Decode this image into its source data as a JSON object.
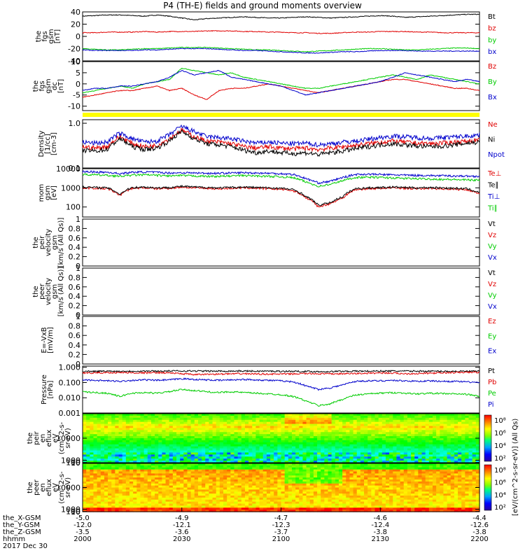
{
  "title": "P4 (TH-E) fields and ground moments overview",
  "date": "2017 Dec 30",
  "colors": {
    "black": "#000000",
    "red": "#e00000",
    "green": "#00cc00",
    "blue": "#0000cc",
    "flag": "#ffff00"
  },
  "chart_data": [
    {
      "id": "fgs_gsm_l2",
      "type": "line",
      "ylabel": [
        "the",
        "fgs",
        "gsm",
        "[nT]"
      ],
      "ylim": [
        -40,
        40
      ],
      "yticks": [
        40,
        20,
        0,
        -20,
        -40
      ],
      "series": [
        {
          "name": "Bt",
          "color": "black",
          "values": [
            33,
            34,
            35,
            35,
            34,
            33,
            35,
            33,
            30,
            27,
            29,
            30,
            31,
            32,
            31,
            30,
            30,
            31,
            32,
            31,
            30,
            31,
            32,
            33,
            34,
            33,
            31,
            32,
            33,
            34,
            35,
            36,
            36
          ]
        },
        {
          "name": "bz",
          "color": "red",
          "values": [
            6,
            6,
            7,
            7,
            7,
            8,
            7,
            8,
            8,
            8,
            9,
            9,
            9,
            8,
            8,
            7,
            7,
            6,
            6,
            5,
            5,
            6,
            7,
            7,
            8,
            8,
            8,
            7,
            7,
            6,
            6,
            6,
            6
          ]
        },
        {
          "name": "by",
          "color": "green",
          "values": [
            -20,
            -21,
            -22,
            -22,
            -21,
            -20,
            -20,
            -19,
            -18,
            -18,
            -18,
            -19,
            -20,
            -21,
            -22,
            -22,
            -23,
            -24,
            -25,
            -24,
            -23,
            -22,
            -21,
            -20,
            -20,
            -21,
            -22,
            -22,
            -21,
            -20,
            -19,
            -19,
            -20
          ]
        },
        {
          "name": "bx",
          "color": "blue",
          "values": [
            -22,
            -23,
            -23,
            -23,
            -23,
            -22,
            -22,
            -21,
            -20,
            -20,
            -20,
            -21,
            -22,
            -23,
            -23,
            -24,
            -25,
            -26,
            -27,
            -27,
            -26,
            -25,
            -25,
            -24,
            -23,
            -23,
            -23,
            -24,
            -24,
            -24,
            -24,
            -24,
            -24
          ]
        }
      ]
    },
    {
      "id": "fgs_gsm_dc",
      "type": "line",
      "ylabel": [
        "the",
        "fgs",
        "gsm",
        "dc",
        "[nT]"
      ],
      "ylim": [
        -12,
        10
      ],
      "yticks": [
        10,
        5,
        0,
        -5,
        -10
      ],
      "series": [
        {
          "name": "Bz",
          "color": "red",
          "values": [
            -6,
            -5,
            -4,
            -3,
            -3,
            -2,
            -1,
            -3,
            -2,
            -5,
            -7,
            -3,
            -2,
            -2,
            -1,
            0,
            -1,
            -2,
            -3,
            -4,
            -3,
            -2,
            -1,
            0,
            1,
            2,
            2,
            1,
            0,
            -1,
            -2,
            -2,
            -3
          ]
        },
        {
          "name": "By",
          "color": "green",
          "values": [
            -4,
            -3,
            -2,
            -1,
            -2,
            0,
            1,
            2,
            7,
            6,
            5,
            4,
            5,
            3,
            2,
            1,
            0,
            -1,
            -2,
            -2,
            -1,
            0,
            1,
            2,
            3,
            4,
            3,
            2,
            4,
            3,
            2,
            1,
            0
          ]
        },
        {
          "name": "Bx",
          "color": "blue",
          "values": [
            -3,
            -2,
            -2,
            -1,
            -1,
            0,
            1,
            3,
            6,
            4,
            5,
            6,
            3,
            2,
            1,
            0,
            -1,
            -3,
            -5,
            -4,
            -3,
            -2,
            -1,
            0,
            1,
            3,
            5,
            4,
            3,
            2,
            1,
            2,
            1
          ]
        }
      ]
    },
    {
      "id": "density",
      "type": "line",
      "log": true,
      "ylabel": [
        "Density",
        "[1/cc]",
        "[cm-3]"
      ],
      "ylim": [
        0.1,
        1.2
      ],
      "yticks": [
        1.0,
        0.1
      ],
      "tick_labels": [
        "1.0",
        "0.1"
      ],
      "series": [
        {
          "name": "Ne",
          "color": "red",
          "values": [
            0.3,
            0.28,
            0.3,
            0.5,
            0.35,
            0.3,
            0.32,
            0.45,
            0.7,
            0.5,
            0.4,
            0.38,
            0.35,
            0.3,
            0.28,
            0.3,
            0.28,
            0.27,
            0.28,
            0.26,
            0.28,
            0.3,
            0.32,
            0.35,
            0.38,
            0.4,
            0.38,
            0.36,
            0.35,
            0.36,
            0.38,
            0.4,
            0.42
          ]
        },
        {
          "name": "Ni",
          "color": "black",
          "values": [
            0.25,
            0.24,
            0.26,
            0.45,
            0.3,
            0.26,
            0.28,
            0.4,
            0.65,
            0.45,
            0.35,
            0.33,
            0.3,
            0.25,
            0.22,
            0.24,
            0.22,
            0.21,
            0.22,
            0.2,
            0.22,
            0.24,
            0.27,
            0.3,
            0.33,
            0.35,
            0.33,
            0.31,
            0.3,
            0.31,
            0.33,
            0.36,
            0.38
          ]
        },
        {
          "name": "Npot",
          "color": "blue",
          "values": [
            0.38,
            0.36,
            0.38,
            0.6,
            0.45,
            0.38,
            0.4,
            0.55,
            0.85,
            0.65,
            0.5,
            0.48,
            0.45,
            0.4,
            0.36,
            0.38,
            0.36,
            0.35,
            0.36,
            0.33,
            0.35,
            0.38,
            0.4,
            0.44,
            0.48,
            0.52,
            0.5,
            0.48,
            0.46,
            0.48,
            0.5,
            0.52,
            0.55
          ]
        }
      ]
    },
    {
      "id": "temperature",
      "type": "line",
      "log": true,
      "ylabel": [
        "mom",
        "gsm",
        "[eV]"
      ],
      "ylim": [
        30,
        10000
      ],
      "yticks": [
        10000,
        1000,
        100
      ],
      "tick_labels": [
        "10000",
        "1000",
        "100"
      ],
      "series": [
        {
          "name": "Te⊥",
          "color": "red",
          "values": [
            1000,
            950,
            900,
            400,
            950,
            1000,
            900,
            950,
            1100,
            1000,
            950,
            900,
            950,
            1000,
            950,
            900,
            850,
            700,
            300,
            100,
            150,
            300,
            800,
            900,
            950,
            1000,
            950,
            900,
            950,
            900,
            850,
            800,
            500
          ]
        },
        {
          "name": "Te∥",
          "color": "black",
          "values": [
            1100,
            1050,
            1000,
            450,
            1050,
            1100,
            1000,
            1050,
            1200,
            1100,
            1050,
            1000,
            1050,
            1100,
            1050,
            1000,
            950,
            800,
            350,
            120,
            170,
            350,
            900,
            1000,
            1050,
            1100,
            1050,
            1000,
            1050,
            1000,
            950,
            900,
            550
          ]
        },
        {
          "name": "Ti⊥",
          "color": "blue",
          "values": [
            7000,
            6800,
            6500,
            5500,
            6500,
            6800,
            6500,
            6000,
            6200,
            6000,
            5800,
            5800,
            6000,
            6200,
            6000,
            5800,
            5500,
            5000,
            3000,
            1800,
            2200,
            3500,
            5000,
            5200,
            5000,
            4800,
            4600,
            4500,
            4400,
            4300,
            4200,
            4100,
            4000
          ]
        },
        {
          "name": "Ti∥",
          "color": "green",
          "values": [
            5000,
            4800,
            4500,
            4000,
            4600,
            4800,
            4500,
            4200,
            4400,
            4200,
            4000,
            4000,
            4200,
            4400,
            4200,
            4000,
            3800,
            3400,
            2000,
            1200,
            1500,
            2400,
            3500,
            3600,
            3500,
            3300,
            3100,
            3000,
            2900,
            2800,
            2700,
            2600,
            2500
          ]
        }
      ]
    },
    {
      "id": "peir_velocity",
      "type": "line",
      "ylabel": [
        "the",
        "peir",
        "velocity",
        "gsm",
        "[km/s (All Qs)]"
      ],
      "ylim": [
        0,
        1
      ],
      "yticks": [
        1.0,
        0.8,
        0.6,
        0.4,
        0.2,
        0.0
      ],
      "series": [
        {
          "name": "Vt",
          "color": "black",
          "values": []
        },
        {
          "name": "Vz",
          "color": "red",
          "values": []
        },
        {
          "name": "Vy",
          "color": "green",
          "values": []
        },
        {
          "name": "Vx",
          "color": "blue",
          "values": []
        }
      ]
    },
    {
      "id": "peer_velocity",
      "type": "line",
      "ylabel": [
        "the",
        "peer",
        "velocity",
        "gsm",
        "[km/s (All Qs)]"
      ],
      "ylim": [
        0,
        1
      ],
      "yticks": [
        1.0,
        0.8,
        0.6,
        0.4,
        0.2,
        0.0
      ],
      "series": [
        {
          "name": "Vt",
          "color": "black",
          "values": []
        },
        {
          "name": "Vz",
          "color": "red",
          "values": []
        },
        {
          "name": "Vy",
          "color": "green",
          "values": []
        },
        {
          "name": "Vx",
          "color": "blue",
          "values": []
        }
      ]
    },
    {
      "id": "efield",
      "type": "line",
      "ylabel": [
        "E=-VxB",
        "[mV/m]"
      ],
      "ylim": [
        0,
        1
      ],
      "yticks": [
        1.0,
        0.8,
        0.6,
        0.4,
        0.2,
        0.0
      ],
      "series": [
        {
          "name": "Ez",
          "color": "red",
          "values": []
        },
        {
          "name": "Ey",
          "color": "green",
          "values": []
        },
        {
          "name": "Ex",
          "color": "blue",
          "values": []
        }
      ]
    },
    {
      "id": "pressure",
      "type": "line",
      "log": true,
      "ylabel": [
        "Pressure",
        "[nPa]"
      ],
      "ylim": [
        0.001,
        1.2
      ],
      "yticks": [
        1.0,
        0.1,
        0.01,
        0.001
      ],
      "tick_labels": [
        "1.000",
        "0.100",
        "0.010",
        "0.001"
      ],
      "series": [
        {
          "name": "Pt",
          "color": "black",
          "values": [
            0.55,
            0.55,
            0.56,
            0.55,
            0.56,
            0.57,
            0.56,
            0.57,
            0.58,
            0.57,
            0.56,
            0.56,
            0.57,
            0.57,
            0.56,
            0.56,
            0.55,
            0.55,
            0.54,
            0.52,
            0.53,
            0.55,
            0.56,
            0.56,
            0.57,
            0.57,
            0.56,
            0.56,
            0.56,
            0.55,
            0.55,
            0.55,
            0.55
          ]
        },
        {
          "name": "Pb",
          "color": "red",
          "values": [
            0.42,
            0.43,
            0.45,
            0.45,
            0.44,
            0.43,
            0.45,
            0.43,
            0.38,
            0.33,
            0.35,
            0.36,
            0.37,
            0.38,
            0.37,
            0.36,
            0.36,
            0.37,
            0.39,
            0.38,
            0.37,
            0.38,
            0.39,
            0.41,
            0.43,
            0.42,
            0.38,
            0.39,
            0.41,
            0.43,
            0.45,
            0.47,
            0.47
          ]
        },
        {
          "name": "Pe",
          "color": "green",
          "values": [
            0.025,
            0.022,
            0.02,
            0.012,
            0.02,
            0.022,
            0.02,
            0.025,
            0.035,
            0.03,
            0.025,
            0.022,
            0.025,
            0.022,
            0.02,
            0.018,
            0.016,
            0.012,
            0.006,
            0.003,
            0.004,
            0.008,
            0.015,
            0.018,
            0.02,
            0.022,
            0.02,
            0.018,
            0.02,
            0.019,
            0.018,
            0.017,
            0.012
          ]
        },
        {
          "name": "Pi",
          "color": "blue",
          "values": [
            0.15,
            0.14,
            0.13,
            0.12,
            0.14,
            0.15,
            0.14,
            0.15,
            0.18,
            0.16,
            0.15,
            0.14,
            0.15,
            0.16,
            0.15,
            0.14,
            0.13,
            0.11,
            0.06,
            0.035,
            0.045,
            0.07,
            0.12,
            0.13,
            0.13,
            0.14,
            0.13,
            0.12,
            0.13,
            0.12,
            0.12,
            0.11,
            0.1
          ]
        }
      ]
    },
    {
      "id": "peir_en_eflux",
      "type": "heatmap",
      "ylabel": [
        "the",
        "peir",
        "en",
        "eflux",
        "eV",
        "(cm^2-s-",
        "sr-eV)"
      ],
      "ylim": [
        5,
        20000
      ],
      "yticks": [
        10000,
        1000,
        100,
        10
      ],
      "tick_labels": [
        "10000",
        "1000",
        "100",
        "10"
      ],
      "colorbar_ticks": [
        "10⁸",
        "10⁶",
        "10⁴",
        "10²"
      ]
    },
    {
      "id": "peer_en_eflux",
      "type": "heatmap",
      "ylabel": [
        "the",
        "peer",
        "en",
        "eflux",
        "eV",
        "(cm^2-s-",
        "sr-eV)"
      ],
      "ylim": [
        5,
        20000
      ],
      "yticks": [
        10000,
        1000,
        100,
        10
      ],
      "tick_labels": [
        "10000",
        "1000",
        "100",
        "10"
      ],
      "colorbar_ticks": [
        "10⁸",
        "10⁶",
        "10⁴",
        "10²"
      ]
    }
  ],
  "colorbar_label": "[eV/(cm^2-s-sr-eV)] (All Qs)",
  "x_axis": {
    "row_labels": [
      "the_X-GSM",
      "the_Y-GSM",
      "the_Z-GSM",
      "hhmm",
      "2017 Dec 30"
    ],
    "ticks": [
      {
        "X": "-5.0",
        "Y": "-12.0",
        "Z": "-3.5",
        "hhmm": "2000"
      },
      {
        "X": "-4.9",
        "Y": "-12.1",
        "Z": "-3.6",
        "hhmm": "2030"
      },
      {
        "X": "-4.7",
        "Y": "-12.3",
        "Z": "-3.7",
        "hhmm": "2100"
      },
      {
        "X": "-4.6",
        "Y": "-12.4",
        "Z": "-3.8",
        "hhmm": "2130"
      },
      {
        "X": "-4.4",
        "Y": "-12.6",
        "Z": "-3.8",
        "hhmm": "2200"
      }
    ]
  }
}
